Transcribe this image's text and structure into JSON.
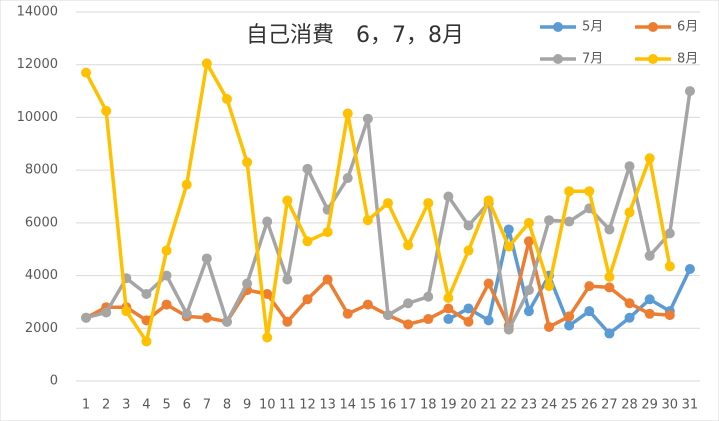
{
  "chart_data": {
    "type": "line",
    "title": "自己消費　6，7，8月",
    "categories": [
      "1",
      "2",
      "3",
      "4",
      "5",
      "6",
      "7",
      "8",
      "9",
      "10",
      "11",
      "12",
      "13",
      "14",
      "15",
      "16",
      "17",
      "18",
      "19",
      "20",
      "21",
      "22",
      "23",
      "24",
      "25",
      "26",
      "27",
      "28",
      "29",
      "30",
      "31"
    ],
    "series": [
      {
        "name": "5月",
        "color": "#5b9bd5",
        "values": [
          null,
          null,
          null,
          null,
          null,
          null,
          null,
          null,
          null,
          null,
          null,
          null,
          null,
          null,
          null,
          null,
          null,
          null,
          2350,
          2750,
          2300,
          5750,
          2650,
          4000,
          2100,
          2650,
          1800,
          2400,
          3100,
          2650,
          4250
        ]
      },
      {
        "name": "6月",
        "color": "#ed7d31",
        "values": [
          2400,
          2800,
          2800,
          2300,
          2900,
          2450,
          2400,
          2250,
          3450,
          3300,
          2250,
          3100,
          3850,
          2550,
          2900,
          2500,
          2150,
          2350,
          2750,
          2250,
          3700,
          2100,
          5300,
          2050,
          2450,
          3600,
          3550,
          2950,
          2550,
          2500,
          null
        ]
      },
      {
        "name": "7月",
        "color": "#a5a5a5",
        "values": [
          2400,
          2600,
          3900,
          3300,
          4000,
          2550,
          4650,
          2250,
          3700,
          6050,
          3850,
          8050,
          6500,
          7700,
          9950,
          2500,
          2950,
          3200,
          7000,
          5900,
          6750,
          1950,
          3450,
          6100,
          6050,
          6550,
          5750,
          8150,
          4750,
          5600,
          11000
        ]
      },
      {
        "name": "8月",
        "color": "#ffc000",
        "values": [
          11700,
          10250,
          2650,
          1500,
          4950,
          7450,
          12050,
          10700,
          8300,
          1650,
          6850,
          5300,
          5650,
          10150,
          6100,
          6750,
          5150,
          6750,
          3150,
          4950,
          6850,
          5100,
          6000,
          3600,
          7200,
          7200,
          3950,
          6400,
          8450,
          4350,
          null
        ]
      }
    ],
    "ylim": [
      0,
      14000
    ],
    "yticks": [
      0,
      2000,
      4000,
      6000,
      8000,
      10000,
      12000,
      14000
    ],
    "grid": true,
    "legend": "top-right"
  }
}
